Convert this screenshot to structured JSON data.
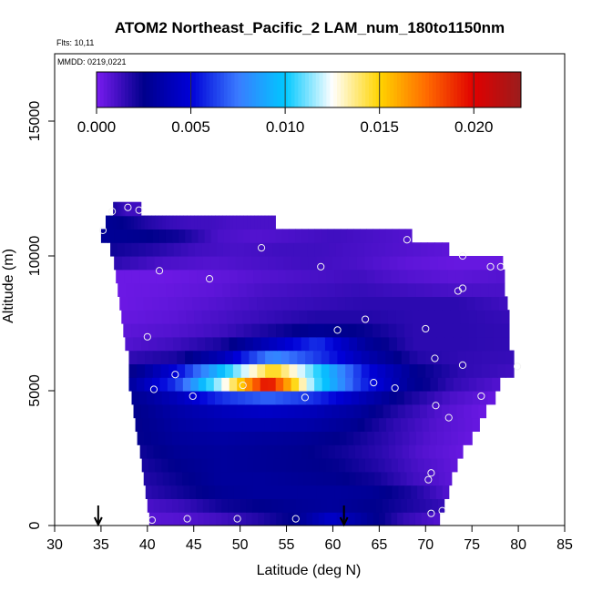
{
  "chart_data": {
    "type": "heatmap",
    "title": "ATOM2 Northeast_Pacific_2 LAM_num_180to1150nm",
    "flights_label": "Flts: 10,11",
    "dates_label": "MMDD: 0219,0221",
    "xlabel": "Latitude (deg N)",
    "ylabel": "Altitude (m)",
    "xlim": [
      30,
      85
    ],
    "ylim": [
      0,
      17500
    ],
    "x_ticks": [
      "30",
      "35",
      "40",
      "45",
      "50",
      "55",
      "60",
      "65",
      "70",
      "75",
      "80",
      "85"
    ],
    "y_ticks": [
      "0",
      "5000",
      "10000",
      "15000"
    ],
    "colorbar": {
      "min": 0.0,
      "max": 0.0225,
      "ticks": [
        "0.000",
        "0.005",
        "0.010",
        "0.015",
        "0.020"
      ],
      "tick_values": [
        0.0,
        0.005,
        0.01,
        0.015,
        0.02
      ],
      "colors": [
        "#7a1cf0",
        "#00008c",
        "#0000d8",
        "#3a7bff",
        "#00c8ff",
        "#ffffff",
        "#ffd400",
        "#ff6a00",
        "#e00000",
        "#9a1d1d"
      ]
    },
    "grid": false,
    "arrows_at_latitude": [
      34.7,
      61.2
    ],
    "altitude_rows": [
      {
        "alt": 250,
        "lat_min": 40.2,
        "lat_max": 71.5,
        "values": [
          0.0007,
          0.0008,
          0.0012,
          0.0018,
          0.0026,
          0.0045,
          0.003,
          0.0015,
          0.0008
        ]
      },
      {
        "alt": 750,
        "lat_min": 40.0,
        "lat_max": 72.0,
        "values": [
          0.001,
          0.0014,
          0.0022,
          0.0025,
          0.0028,
          0.003,
          0.0026,
          0.002,
          0.0014
        ]
      },
      {
        "alt": 1250,
        "lat_min": 39.8,
        "lat_max": 72.5,
        "values": [
          0.0016,
          0.0022,
          0.0028,
          0.003,
          0.003,
          0.003,
          0.0028,
          0.002,
          0.0008
        ]
      },
      {
        "alt": 1750,
        "lat_min": 39.6,
        "lat_max": 72.8,
        "values": [
          0.0018,
          0.0024,
          0.003,
          0.003,
          0.0028,
          0.0026,
          0.0022,
          0.0012,
          0.0006
        ]
      },
      {
        "alt": 2250,
        "lat_min": 39.4,
        "lat_max": 73.4,
        "values": [
          0.002,
          0.0026,
          0.003,
          0.0028,
          0.0026,
          0.0024,
          0.0018,
          0.001,
          0.0005
        ]
      },
      {
        "alt": 2750,
        "lat_min": 39.2,
        "lat_max": 74.0,
        "values": [
          0.0022,
          0.0028,
          0.003,
          0.0028,
          0.0026,
          0.0022,
          0.0016,
          0.0008,
          0.0004
        ]
      },
      {
        "alt": 3250,
        "lat_min": 38.9,
        "lat_max": 75.0,
        "values": [
          0.0024,
          0.003,
          0.0032,
          0.003,
          0.0028,
          0.0024,
          0.0016,
          0.0008,
          0.0004
        ]
      },
      {
        "alt": 3750,
        "lat_min": 38.7,
        "lat_max": 75.8,
        "values": [
          0.0024,
          0.0032,
          0.0036,
          0.0036,
          0.0034,
          0.0028,
          0.0016,
          0.0008,
          0.0004
        ]
      },
      {
        "alt": 4250,
        "lat_min": 38.5,
        "lat_max": 76.5,
        "values": [
          0.0024,
          0.0034,
          0.004,
          0.0044,
          0.004,
          0.0032,
          0.0018,
          0.0008,
          0.0003
        ]
      },
      {
        "alt": 4750,
        "lat_min": 38.3,
        "lat_max": 77.5,
        "values": [
          0.0026,
          0.004,
          0.006,
          0.007,
          0.006,
          0.004,
          0.0022,
          0.001,
          0.0004
        ]
      },
      {
        "alt": 5250,
        "lat_min": 38.0,
        "lat_max": 78.0,
        "values": [
          0.003,
          0.006,
          0.012,
          0.02,
          0.011,
          0.006,
          0.003,
          0.0015,
          0.0008
        ]
      },
      {
        "alt": 5750,
        "lat_min": 38.0,
        "lat_max": 79.5,
        "values": [
          0.0022,
          0.005,
          0.01,
          0.015,
          0.01,
          0.005,
          0.0025,
          0.0015,
          0.0012
        ]
      },
      {
        "alt": 6250,
        "lat_min": 38.0,
        "lat_max": 79.5,
        "values": [
          0.0015,
          0.002,
          0.004,
          0.008,
          0.006,
          0.0035,
          0.0018,
          0.0015,
          0.0014
        ]
      },
      {
        "alt": 6750,
        "lat_min": 37.6,
        "lat_max": 79.0,
        "values": [
          0.0008,
          0.0012,
          0.002,
          0.004,
          0.006,
          0.003,
          0.0016,
          0.0016,
          0.0015
        ]
      },
      {
        "alt": 7250,
        "lat_min": 37.4,
        "lat_max": 79.0,
        "values": [
          0.0006,
          0.0008,
          0.0012,
          0.002,
          0.0028,
          0.0024,
          0.0016,
          0.0016,
          0.0015
        ]
      },
      {
        "alt": 7750,
        "lat_min": 37.2,
        "lat_max": 79.0,
        "values": [
          0.0004,
          0.0006,
          0.001,
          0.0014,
          0.0018,
          0.0018,
          0.0016,
          0.0016,
          0.0014
        ]
      },
      {
        "alt": 8250,
        "lat_min": 37.0,
        "lat_max": 78.8,
        "values": [
          0.0003,
          0.0005,
          0.0008,
          0.0012,
          0.0014,
          0.0016,
          0.0016,
          0.0016,
          0.0012
        ]
      },
      {
        "alt": 8750,
        "lat_min": 36.8,
        "lat_max": 78.5,
        "values": [
          0.0003,
          0.0004,
          0.0006,
          0.001,
          0.0012,
          0.0014,
          0.0012,
          0.001,
          0.001
        ]
      },
      {
        "alt": 9250,
        "lat_min": 36.6,
        "lat_max": 78.5,
        "values": [
          0.0003,
          0.0003,
          0.0005,
          0.0008,
          0.001,
          0.0012,
          0.0008,
          0.0006,
          0.0008
        ]
      },
      {
        "alt": 9750,
        "lat_min": 36.4,
        "lat_max": 78.3,
        "values": [
          0.0016,
          0.001,
          0.0008,
          0.001,
          0.0012,
          0.001,
          0.0006,
          0.0004,
          0.0004
        ]
      },
      {
        "alt": 10250,
        "lat_min": 36.0,
        "lat_max": 72.5,
        "values": [
          0.0022,
          0.0018,
          0.0012,
          0.001,
          0.0012,
          0.0012,
          0.001,
          0.0008,
          0.0006
        ]
      },
      {
        "alt": 10750,
        "lat_min": 35.0,
        "lat_max": 68.5,
        "values": [
          0.0028,
          0.0026,
          0.0022,
          0.001,
          0.0008,
          0.001,
          0.0012,
          0.001,
          0.0008
        ]
      },
      {
        "alt": 11250,
        "lat_min": 35.5,
        "lat_max": 53.8,
        "values": [
          0.0028,
          0.0024,
          0.0018,
          0.0014,
          0.0012,
          0.0012,
          0.001,
          0.001,
          0.001
        ]
      },
      {
        "alt": 11750,
        "lat_min": 36.3,
        "lat_max": 39.3,
        "values": [
          0.002,
          0.0018,
          0.0016,
          0.0014,
          0.0012,
          0.0012,
          0.0012,
          0.0012,
          0.0012
        ]
      }
    ],
    "points": [
      {
        "lat": 36.2,
        "alt": 11650
      },
      {
        "lat": 37.9,
        "alt": 11800
      },
      {
        "lat": 39.1,
        "alt": 11700
      },
      {
        "lat": 35.2,
        "alt": 10950
      },
      {
        "lat": 41.3,
        "alt": 9450
      },
      {
        "lat": 46.7,
        "alt": 9150
      },
      {
        "lat": 52.3,
        "alt": 10300
      },
      {
        "lat": 58.7,
        "alt": 9600
      },
      {
        "lat": 68.0,
        "alt": 10600
      },
      {
        "lat": 74.0,
        "alt": 10000
      },
      {
        "lat": 77.0,
        "alt": 9600
      },
      {
        "lat": 78.1,
        "alt": 9600
      },
      {
        "lat": 73.5,
        "alt": 8700
      },
      {
        "lat": 74.0,
        "alt": 8800
      },
      {
        "lat": 63.5,
        "alt": 7650
      },
      {
        "lat": 60.5,
        "alt": 7250
      },
      {
        "lat": 70.0,
        "alt": 7300
      },
      {
        "lat": 40.0,
        "alt": 7000
      },
      {
        "lat": 71.0,
        "alt": 6200
      },
      {
        "lat": 74.0,
        "alt": 5950
      },
      {
        "lat": 79.9,
        "alt": 5900
      },
      {
        "lat": 43.0,
        "alt": 5600
      },
      {
        "lat": 50.3,
        "alt": 5200
      },
      {
        "lat": 64.4,
        "alt": 5300
      },
      {
        "lat": 66.7,
        "alt": 5100
      },
      {
        "lat": 40.7,
        "alt": 5050
      },
      {
        "lat": 44.9,
        "alt": 4800
      },
      {
        "lat": 57.0,
        "alt": 4750
      },
      {
        "lat": 76.0,
        "alt": 4800
      },
      {
        "lat": 71.1,
        "alt": 4450
      },
      {
        "lat": 72.5,
        "alt": 4000
      },
      {
        "lat": 70.6,
        "alt": 1950
      },
      {
        "lat": 70.3,
        "alt": 1700
      },
      {
        "lat": 70.6,
        "alt": 450
      },
      {
        "lat": 71.8,
        "alt": 550
      },
      {
        "lat": 40.5,
        "alt": 200
      },
      {
        "lat": 44.3,
        "alt": 250
      },
      {
        "lat": 49.7,
        "alt": 250
      },
      {
        "lat": 56.0,
        "alt": 250
      }
    ]
  }
}
